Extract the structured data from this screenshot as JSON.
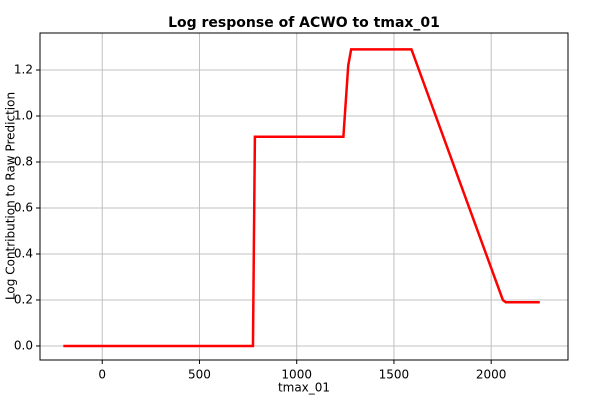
{
  "chart_data": {
    "type": "line",
    "title": "Log response of ACWO to tmax_01",
    "x_label": "tmax_01",
    "y_label": "Log Contribution to Raw Prediction",
    "x": [
      -200,
      775,
      785,
      1240,
      1265,
      1280,
      1590,
      2060,
      2075,
      2250
    ],
    "series": [
      {
        "name": "ACWO",
        "color": "#ff0000",
        "values": [
          0,
          0,
          0.91,
          0.91,
          1.22,
          1.29,
          1.29,
          0.2,
          0.19,
          0.19
        ]
      }
    ],
    "xlim": [
      -320,
      2395
    ],
    "ylim": [
      -0.061,
      1.361
    ],
    "xticks": [
      0,
      500,
      1000,
      1500,
      2000
    ],
    "yticks": [
      {
        "value": 0,
        "label": "0.0"
      },
      0.2,
      0.4,
      0.6,
      0.8,
      {
        "value": 1,
        "label": "1.0"
      },
      1.2
    ],
    "grid": true
  }
}
